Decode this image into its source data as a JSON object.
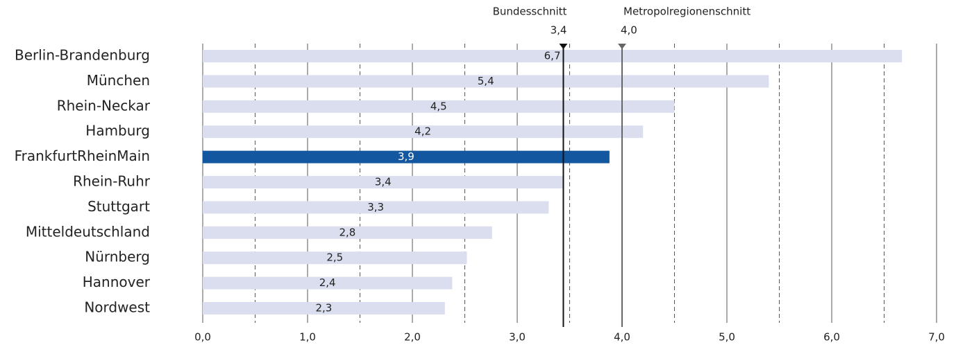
{
  "chart_data": {
    "type": "hbar",
    "categories": [
      "Berlin-Brandenburg",
      "München",
      "Rhein-Neckar",
      "Hamburg",
      "FrankfurtRheinMain",
      "Rhein-Ruhr",
      "Stuttgart",
      "Mitteldeutschland",
      "Nürnberg",
      "Hannover",
      "Nordwest"
    ],
    "values": [
      6.67,
      5.4,
      4.5,
      4.2,
      3.88,
      3.44,
      3.3,
      2.76,
      2.52,
      2.38,
      2.31
    ],
    "value_labels": [
      "6,7",
      "5,4",
      "4,5",
      "4,2",
      "3,9",
      "3,4",
      "3,3",
      "2,8",
      "2,5",
      "2,4",
      "2,3"
    ],
    "colors": [
      "#dadeef",
      "#dadeef",
      "#dadeef",
      "#dadeef",
      "#1357a1",
      "#dadeef",
      "#dadeef",
      "#dadeef",
      "#dadeef",
      "#dadeef",
      "#dadeef"
    ],
    "xlim": [
      0,
      7
    ],
    "xticks": [
      {
        "value": 0,
        "label": "0,0"
      },
      {
        "value": 1,
        "label": "1,0"
      },
      {
        "value": 2,
        "label": "2,0"
      },
      {
        "value": 3,
        "label": "3,0"
      },
      {
        "value": 4,
        "label": "4,0"
      },
      {
        "value": 5,
        "label": "5,0"
      },
      {
        "value": 6,
        "label": "6,0"
      },
      {
        "value": 7,
        "label": "7,0"
      }
    ],
    "xminor": [
      0.5,
      1.5,
      2.5,
      3.5,
      4.5,
      5.5,
      6.5
    ],
    "grid": true,
    "reference_lines": [
      {
        "name": "Bundesschnitt",
        "value": 3.44,
        "value_label": "3,4",
        "color": "#111111"
      },
      {
        "name": "Metropolregionenschnitt",
        "value": 4.0,
        "value_label": "4,0",
        "color": "#666666"
      }
    ]
  }
}
